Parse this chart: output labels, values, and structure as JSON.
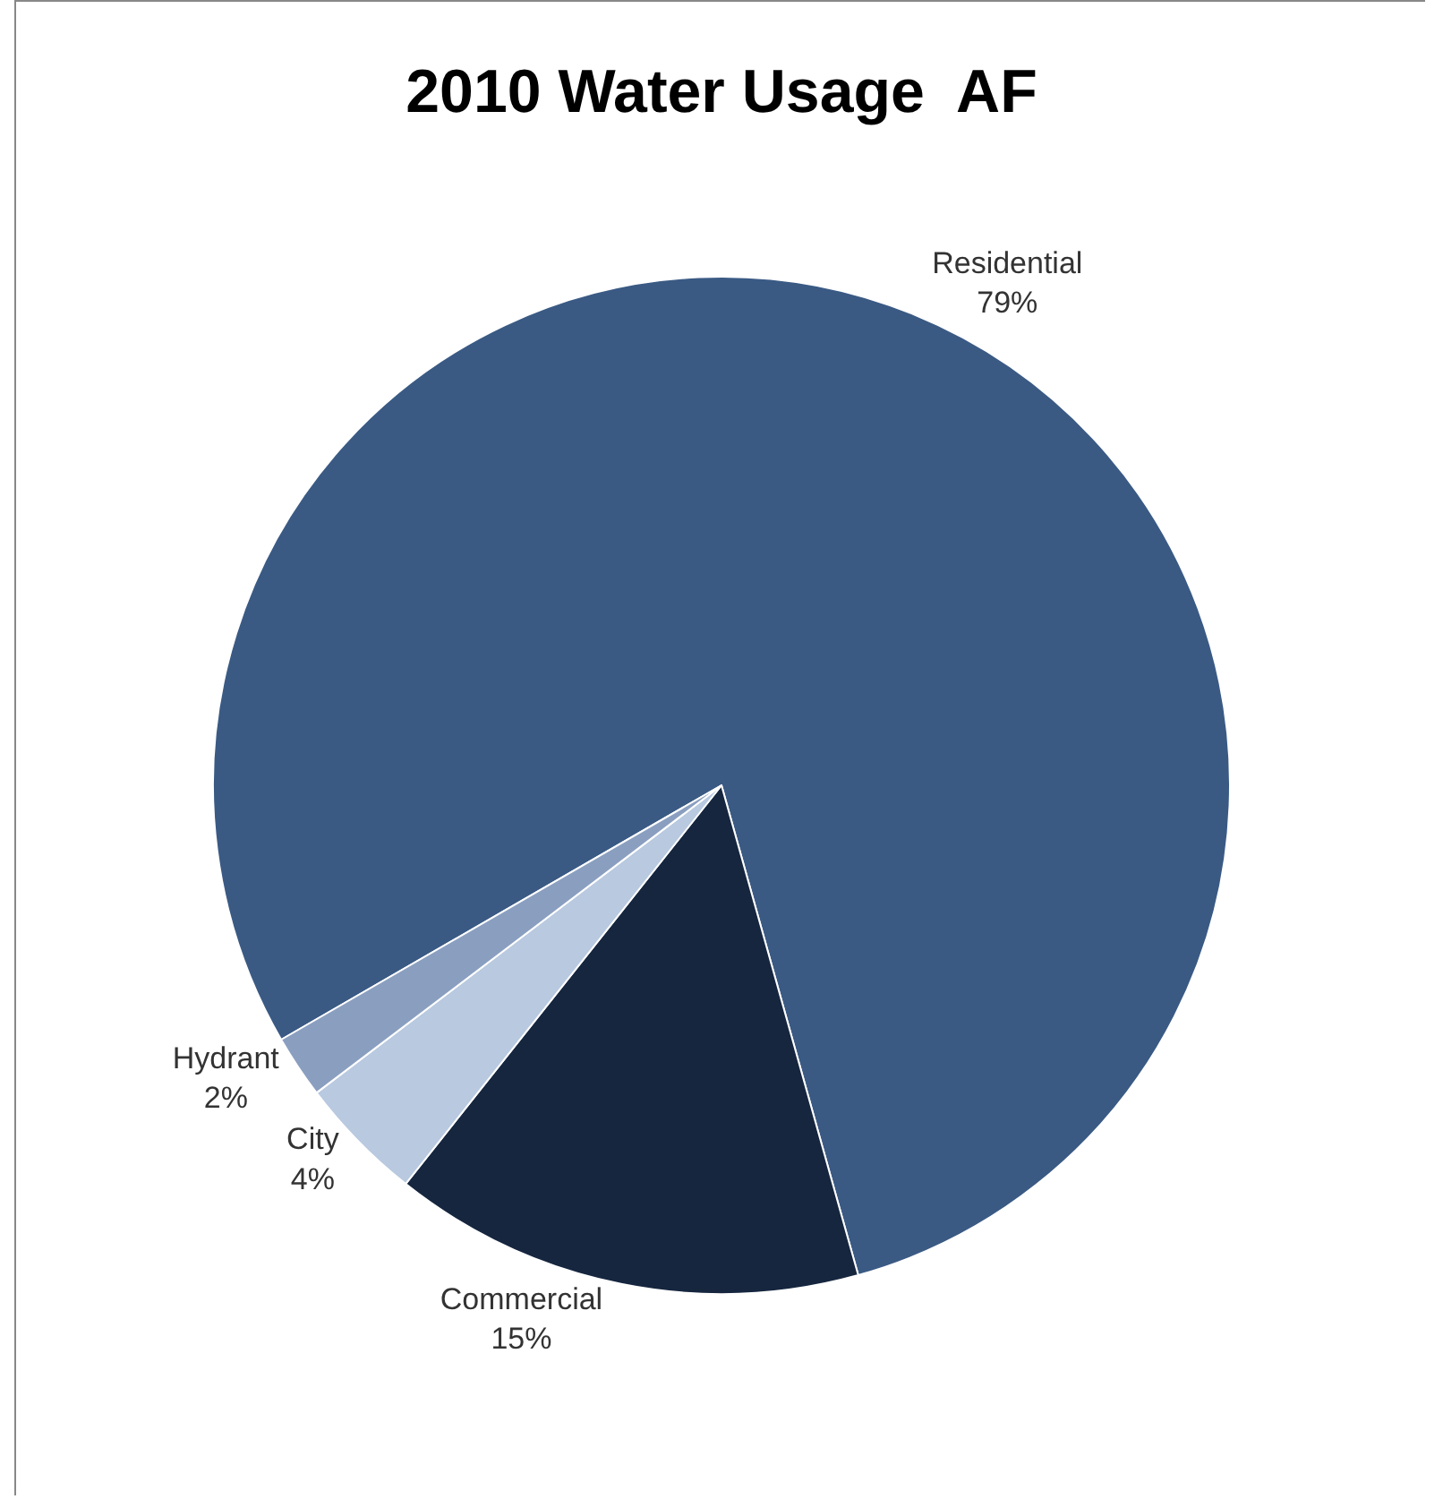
{
  "chart_data": {
    "type": "pie",
    "title": "2010 Water Usage  AF",
    "categories": [
      "Residential",
      "Commercial",
      "City",
      "Hydrant"
    ],
    "values": [
      79,
      15,
      4,
      2
    ],
    "value_labels": [
      "79%",
      "15%",
      "4%",
      "2%"
    ],
    "colors": [
      "#3a5a84",
      "#16263f",
      "#b8c9e0",
      "#8a9fc0"
    ]
  }
}
